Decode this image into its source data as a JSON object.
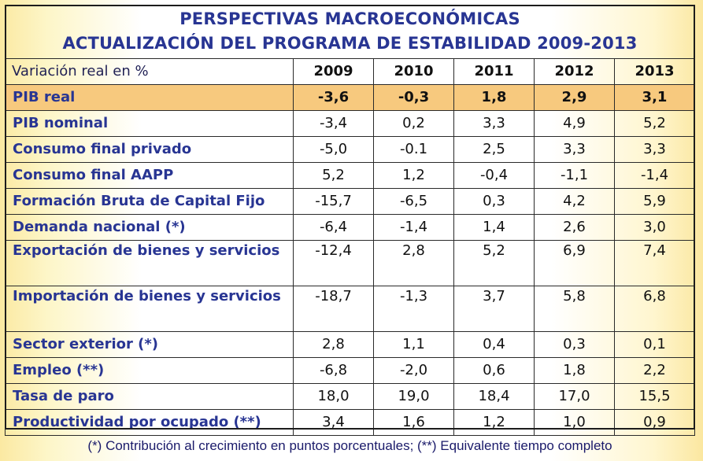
{
  "title_line1": "PERSPECTIVAS MACROECONÓMICAS",
  "title_line2": "ACTUALIZACIÓN DEL PROGRAMA DE ESTABILIDAD 2009-2013",
  "header": {
    "label": "Variación real en %",
    "years": [
      "2009",
      "2010",
      "2011",
      "2012",
      "2013"
    ]
  },
  "rows": [
    {
      "label": "PIB real",
      "values": [
        "-3,6",
        "-0,3",
        "1,8",
        "2,9",
        "3,1"
      ]
    },
    {
      "label": "PIB nominal",
      "values": [
        "-3,4",
        "0,2",
        "3,3",
        "4,9",
        "5,2"
      ]
    },
    {
      "label": "Consumo final privado",
      "values": [
        "-5,0",
        "-0.1",
        "2,5",
        "3,3",
        "3,3"
      ]
    },
    {
      "label": "Consumo final AAPP",
      "values": [
        "5,2",
        "1,2",
        "-0,4",
        "-1,1",
        "-1,4"
      ]
    },
    {
      "label": "Formación Bruta de Capital Fijo",
      "values": [
        "-15,7",
        "-6,5",
        "0,3",
        "4,2",
        "5,9"
      ]
    },
    {
      "label": "Demanda nacional (*)",
      "values": [
        "-6,4",
        "-1,4",
        "1,4",
        "2,6",
        "3,0"
      ]
    },
    {
      "label": "Exportación de bienes y servicios",
      "values": [
        "-12,4",
        "2,8",
        "5,2",
        "6,9",
        "7,4"
      ]
    },
    {
      "label": "Importación de bienes y servicios",
      "values": [
        "-18,7",
        "-1,3",
        "3,7",
        "5,8",
        "6,8"
      ]
    },
    {
      "label": "Sector exterior (*)",
      "values": [
        "2,8",
        "1,1",
        "0,4",
        "0,3",
        "0,1"
      ]
    },
    {
      "label": "Empleo (**)",
      "values": [
        "-6,8",
        "-2,0",
        "0,6",
        "1,8",
        "2,2"
      ]
    },
    {
      "label": "Tasa de paro",
      "values": [
        "18,0",
        "19,0",
        "18,4",
        "17,0",
        "15,5"
      ]
    },
    {
      "label": "Productividad por ocupado (**)",
      "values": [
        "3,4",
        "1,6",
        "1,2",
        "1,0",
        "0,9"
      ]
    }
  ],
  "footnote": "(*) Contribución al crecimiento en puntos porcentuales; (**) Equivalente tiempo completo",
  "colors": {
    "title": "#283593",
    "highlight_row": "#f7c97e",
    "background_edge": "#fbe9a2"
  }
}
